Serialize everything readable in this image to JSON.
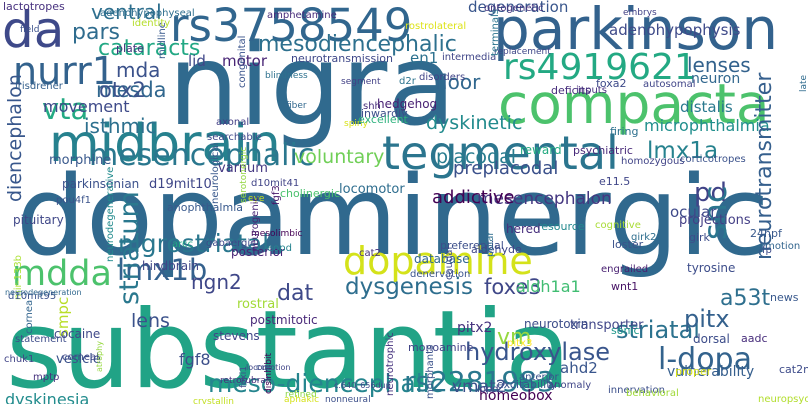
{
  "words": [
    {
      "text": "dopaminergic",
      "color": "#30698e"
    },
    {
      "text": "substantia",
      "color": "#21a386"
    },
    {
      "text": "nigra",
      "color": "#306a8e"
    },
    {
      "text": "parkinson",
      "color": "#33628d"
    },
    {
      "text": "compacta",
      "color": "#4cc26c"
    },
    {
      "text": "tegmental",
      "color": "#2b758e"
    },
    {
      "text": "midbrain",
      "color": "#26818e"
    },
    {
      "text": "rs3758549",
      "color": "#31668e"
    },
    {
      "text": "rs4919621",
      "color": "#23a983"
    },
    {
      "text": "dopamine",
      "color": "#d4e21a"
    },
    {
      "text": "mdda",
      "color": "#4cc26c"
    },
    {
      "text": "nurr1",
      "color": "#33628d"
    },
    {
      "text": "da",
      "color": "#3e4989"
    },
    {
      "text": "mesencephalic",
      "color": "#2a778e"
    },
    {
      "text": "nigrostriatal",
      "color": "#2a778e"
    },
    {
      "text": "meso-diencephalic",
      "color": "#25858e"
    },
    {
      "text": "rs2281983",
      "color": "#2a788e"
    },
    {
      "text": "mesodiencephalic",
      "color": "#2d708e"
    },
    {
      "text": "cataracts",
      "color": "#22a884"
    },
    {
      "text": "lmx1b",
      "color": "#34618d"
    },
    {
      "text": "hydroxylase",
      "color": "#39558c"
    },
    {
      "text": "striatal",
      "color": "#2c728e"
    },
    {
      "text": "l-dopa",
      "color": "#33638d"
    },
    {
      "text": "vta",
      "color": "#24aa83"
    },
    {
      "text": "pars",
      "color": "#2f6c8e"
    },
    {
      "text": "mda",
      "color": "#3b528b"
    },
    {
      "text": "mesda",
      "color": "#31678e"
    },
    {
      "text": "dat",
      "color": "#3e4989"
    },
    {
      "text": "pitx",
      "color": "#34618d"
    },
    {
      "text": "dysgenesis",
      "color": "#2e6e8e"
    },
    {
      "text": "foxe3",
      "color": "#3f4788"
    },
    {
      "text": "pd",
      "color": "#404387"
    },
    {
      "text": "lmx1a",
      "color": "#26828e"
    },
    {
      "text": "snc",
      "color": "#2b758e"
    },
    {
      "text": "a53t",
      "color": "#2e6f8e"
    },
    {
      "text": "otx2",
      "color": "#3b528b"
    },
    {
      "text": "lenses",
      "color": "#33628d"
    },
    {
      "text": "striatum",
      "color": "#2a788e"
    },
    {
      "text": "ventral",
      "color": "#2e6f8e"
    },
    {
      "text": "adenohypophysis",
      "color": "#3e4a89"
    },
    {
      "text": "degeneration",
      "color": "#39568c"
    },
    {
      "text": "dyskinetic",
      "color": "#228b8d"
    },
    {
      "text": "placodal",
      "color": "#287c8e"
    },
    {
      "text": "preplacodal",
      "color": "#3b518b"
    },
    {
      "text": "movement",
      "color": "#3e4a89"
    },
    {
      "text": "floor",
      "color": "#31678e"
    },
    {
      "text": "voluntary",
      "color": "#70cf57"
    },
    {
      "text": "microphthalmia",
      "color": "#218f8d"
    },
    {
      "text": "mesencephalon",
      "color": "#453781"
    },
    {
      "text": "lens",
      "color": "#3b528b"
    },
    {
      "text": "vm",
      "color": "#95d840"
    },
    {
      "text": "aldh1a1",
      "color": "#40bd72"
    },
    {
      "text": "dyskinesia",
      "color": "#228c8d"
    },
    {
      "text": "vulnerability",
      "color": "#355e8d"
    },
    {
      "text": "ngn2",
      "color": "#3f4788"
    },
    {
      "text": "ocular",
      "color": "#3e4989"
    },
    {
      "text": "vmat2",
      "color": "#3b518b"
    },
    {
      "text": "motor",
      "color": "#482475"
    },
    {
      "text": "isthmic",
      "color": "#2d708e"
    },
    {
      "text": "neuron",
      "color": "#31678e"
    },
    {
      "text": "addictive",
      "color": "#440154"
    },
    {
      "text": "distalis",
      "color": "#29798e"
    },
    {
      "text": "neurotransmitter",
      "color": "#355f8d"
    },
    {
      "text": "diencephalon",
      "color": "#38578c"
    },
    {
      "text": "smpc",
      "color": "#b8de29"
    },
    {
      "text": "lactotropes",
      "color": "#46307e"
    },
    {
      "text": "ontogenetic",
      "color": "#46337e"
    },
    {
      "text": "embrys",
      "color": "#424186"
    },
    {
      "text": "lid",
      "color": "#3f4788"
    },
    {
      "text": "en1",
      "color": "#2c718e"
    },
    {
      "text": "intermedia",
      "color": "#404688"
    },
    {
      "text": "fiber",
      "color": "#31688e"
    },
    {
      "text": "neurotransmission",
      "color": "#3f4889"
    },
    {
      "text": "shh",
      "color": "#472d7b"
    },
    {
      "text": "hedgehog",
      "color": "#482173"
    },
    {
      "text": "pitx2",
      "color": "#46327e"
    },
    {
      "text": "reward",
      "color": "#25ab82"
    },
    {
      "text": "firing",
      "color": "#2d708e"
    },
    {
      "text": "d19mit10",
      "color": "#3f4788"
    },
    {
      "text": "d10mit41",
      "color": "#414487"
    },
    {
      "text": "varnum",
      "color": "#453882"
    },
    {
      "text": "locomotor",
      "color": "#2e6d8e"
    },
    {
      "text": "projections",
      "color": "#433e85"
    },
    {
      "text": "tyrosine",
      "color": "#3d4d8a"
    },
    {
      "text": "ahd2",
      "color": "#39558c"
    },
    {
      "text": "transporter",
      "color": "#404688"
    },
    {
      "text": "neurotoxin",
      "color": "#3d4e8a"
    },
    {
      "text": "homeobox",
      "color": "#440154"
    },
    {
      "text": "fgf8",
      "color": "#3c4f8a"
    },
    {
      "text": "wnt1",
      "color": "#471365"
    },
    {
      "text": "sonic",
      "color": "#1f988b"
    },
    {
      "text": "dorsal",
      "color": "#3d4d8a"
    },
    {
      "text": "postmitotic",
      "color": "#482878"
    },
    {
      "text": "stevens",
      "color": "#404588"
    },
    {
      "text": "rostral",
      "color": "#a2da37"
    },
    {
      "text": "posterior",
      "color": "#482475"
    },
    {
      "text": "parkinsonian",
      "color": "#3b518b"
    },
    {
      "text": "cocaine",
      "color": "#3f4889"
    },
    {
      "text": "statement",
      "color": "#3d4d8a"
    },
    {
      "text": "chuk1",
      "color": "#414487"
    },
    {
      "text": "vesicle",
      "color": "#3b528b"
    },
    {
      "text": "mptp",
      "color": "#46327e"
    },
    {
      "text": "morphine",
      "color": "#38588c"
    },
    {
      "text": "pou4f1",
      "color": "#3a538b"
    },
    {
      "text": "pituitary",
      "color": "#3f4788"
    },
    {
      "text": "irisdreher",
      "color": "#34608d"
    },
    {
      "text": "midline",
      "color": "#38598c"
    },
    {
      "text": "plate",
      "color": "#46327e"
    },
    {
      "text": "identity",
      "color": "#b5de2b"
    },
    {
      "text": "amphetamine",
      "color": "#472c7a"
    },
    {
      "text": "adenohypophyseal",
      "color": "#2e6e8e"
    },
    {
      "text": "searchable",
      "color": "#3f4889"
    },
    {
      "text": "axonal",
      "color": "#433e85"
    },
    {
      "text": "spiny",
      "color": "#d8e219"
    },
    {
      "text": "inwardly",
      "color": "#3c4f8a"
    },
    {
      "text": "excellent",
      "color": "#2db27d"
    },
    {
      "text": "congenital",
      "color": "#3a548c"
    },
    {
      "text": "segment",
      "color": "#424186"
    },
    {
      "text": "d2r",
      "color": "#2c738e"
    },
    {
      "text": "disorders",
      "color": "#414487"
    },
    {
      "text": "deficits",
      "color": "#472e7c"
    },
    {
      "text": "foxa2",
      "color": "#3e4a89"
    },
    {
      "text": "inputs",
      "color": "#46307e"
    },
    {
      "text": "autosomal",
      "color": "#404588"
    },
    {
      "text": "replacement",
      "color": "#3f4788"
    },
    {
      "text": "terminals",
      "color": "#2b748e"
    },
    {
      "text": "rostrolateral",
      "color": "#dde318"
    },
    {
      "text": "field",
      "color": "#3b518b"
    },
    {
      "text": "blindness",
      "color": "#2d718e"
    },
    {
      "text": "psychiatric",
      "color": "#482979"
    },
    {
      "text": "homozygous",
      "color": "#414487"
    },
    {
      "text": "corticotropes",
      "color": "#3b528b"
    },
    {
      "text": "late",
      "color": "#2f6b8e"
    },
    {
      "text": "e11.5",
      "color": "#404688"
    },
    {
      "text": "fp",
      "color": "#3e4c8a"
    },
    {
      "text": "emotion",
      "color": "#32658e"
    },
    {
      "text": "24hpf",
      "color": "#38598c"
    },
    {
      "text": "girk",
      "color": "#3d4d8a"
    },
    {
      "text": "girk2",
      "color": "#2e6e8e"
    },
    {
      "text": "loster",
      "color": "#3b528b"
    },
    {
      "text": "engrailed",
      "color": "#482071"
    },
    {
      "text": "news",
      "color": "#38588c"
    },
    {
      "text": "cognitive",
      "color": "#a8db34"
    },
    {
      "text": "resource",
      "color": "#23898e"
    },
    {
      "text": "hered",
      "color": "#472f7d"
    },
    {
      "text": "aldehyde",
      "color": "#3f4788"
    },
    {
      "text": "preferential",
      "color": "#3c4f8a"
    },
    {
      "text": "polar",
      "color": "#2e6e8e"
    },
    {
      "text": "database",
      "color": "#31678e"
    },
    {
      "text": "denervation",
      "color": "#3a548c"
    },
    {
      "text": "caudal",
      "color": "#3e4c8a"
    },
    {
      "text": "cat2",
      "color": "#46327e"
    },
    {
      "text": "eopd",
      "color": "#25838e"
    },
    {
      "text": "cholinergic",
      "color": "#4ac16d"
    },
    {
      "text": "eye",
      "color": "#c8e020"
    },
    {
      "text": "mesolimbic",
      "color": "#440154"
    },
    {
      "text": "gabaergic",
      "color": "#3e4989"
    },
    {
      "text": "arcc",
      "color": "#22a884"
    },
    {
      "text": "hindbrain",
      "color": "#404688"
    },
    {
      "text": "neurogenic",
      "color": "#482575"
    },
    {
      "text": "fgf3",
      "color": "#48186a"
    },
    {
      "text": "serotonergic",
      "color": "#93d741"
    },
    {
      "text": "neurological",
      "color": "#38588c"
    },
    {
      "text": "anophthalmia",
      "color": "#38598c"
    },
    {
      "text": "mir-133b",
      "color": "#ade237"
    },
    {
      "text": "d10mit95",
      "color": "#3b528b"
    },
    {
      "text": "neurodegeneration",
      "color": "#31688e"
    },
    {
      "text": "neurodegenerative",
      "color": "#228b8d"
    },
    {
      "text": "cornea",
      "color": "#32658e"
    },
    {
      "text": "corneal",
      "color": "#3f4889"
    },
    {
      "text": "monoamine",
      "color": "#414487"
    },
    {
      "text": "pitx3",
      "color": "#fde725"
    },
    {
      "text": "aadc",
      "color": "#472d7b"
    },
    {
      "text": "cat2np",
      "color": "#3e4c8a"
    },
    {
      "text": "anterior",
      "color": "#3b518b"
    },
    {
      "text": "excitability",
      "color": "#3b528b"
    },
    {
      "text": "lopd",
      "color": "#414487"
    },
    {
      "text": "proper",
      "color": "#d6e21a"
    },
    {
      "text": "anomaly",
      "color": "#404688"
    },
    {
      "text": "innervation",
      "color": "#3c4f8a"
    },
    {
      "text": "behavioral",
      "color": "#a0da39"
    },
    {
      "text": "neuropsychiatric",
      "color": "#b2dd2c"
    },
    {
      "text": "morphants",
      "color": "#3b528b"
    },
    {
      "text": "neurotrophic",
      "color": "#46337e"
    },
    {
      "text": "nonneural",
      "color": "#3c4f8a"
    },
    {
      "text": "refined",
      "color": "#8bd646"
    },
    {
      "text": "disinhibit",
      "color": "#440154"
    },
    {
      "text": "foxi1",
      "color": "#3e4c8a"
    },
    {
      "text": "cup",
      "color": "#3a548c"
    },
    {
      "text": "retrorubral",
      "color": "#472f7d"
    },
    {
      "text": "locomotion",
      "color": "#404588"
    },
    {
      "text": "aphakic",
      "color": "#d5e21a"
    },
    {
      "text": "crystallin",
      "color": "#c2df23"
    },
    {
      "text": "c.640_656dup",
      "color": "#3e4989"
    },
    {
      "text": "atrophy",
      "color": "#95d840"
    }
  ]
}
